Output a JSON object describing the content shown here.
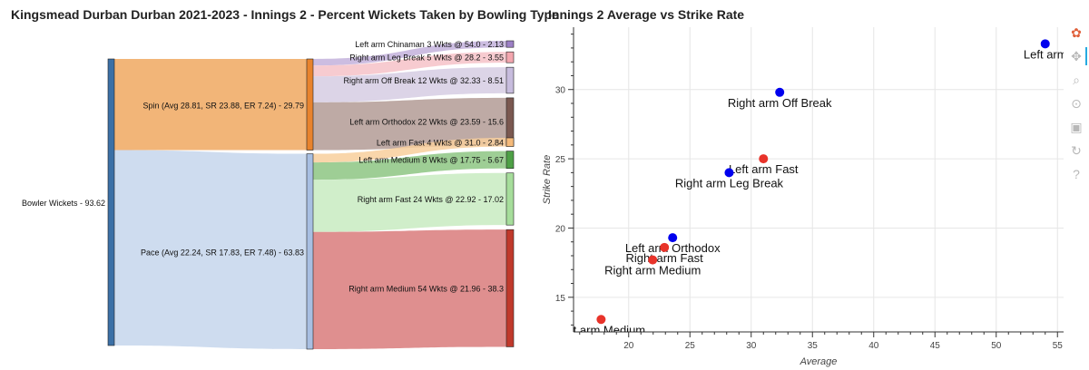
{
  "sankey": {
    "title": "Kingsmead Durban Durban 2021-2023 - Innings 2 - Percent Wickets Taken by Bowling Type",
    "root": {
      "label": "Bowler Wickets - 93.62",
      "value": 93.62,
      "color": "#3b70a6"
    },
    "groups": [
      {
        "label": "Spin (Avg 28.81, SR 23.88, ER 7.24) - 29.79",
        "value": 29.79,
        "color": "#f0a860",
        "node_color": "#e8832d"
      },
      {
        "label": "Pace (Avg 22.24, SR 17.83, ER 7.48) - 63.83",
        "value": 63.83,
        "color": "#c5d6ec",
        "node_color": "#a8bfe2"
      }
    ],
    "leaves": [
      {
        "group": 0,
        "label": "Left arm Chinaman 3 Wkts @ 54.0 - 2.13",
        "value": 2.13,
        "color": "#c3b2dc",
        "node_color": "#9c7fc5"
      },
      {
        "group": 0,
        "label": "Right arm Leg Break 5 Wkts @ 28.2 - 3.55",
        "value": 3.55,
        "color": "#f6c2c8",
        "node_color": "#f3a6ae"
      },
      {
        "group": 0,
        "label": "Right arm Off Break 12 Wkts @ 32.33 - 8.51",
        "value": 8.51,
        "color": "#d6cde3",
        "node_color": "#c7bcdd"
      },
      {
        "group": 0,
        "label": "Left arm Orthodox 22 Wkts @ 23.59 - 15.6",
        "value": 15.6,
        "color": "#b39b95",
        "node_color": "#7a5850"
      },
      {
        "group": 1,
        "label": "Left arm Fast 4 Wkts @ 31.0 - 2.84",
        "value": 2.84,
        "color": "#f8cf9c",
        "node_color": "#f5ba7a"
      },
      {
        "group": 1,
        "label": "Left arm Medium 8 Wkts @ 17.75 - 5.67",
        "value": 5.67,
        "color": "#8dc683",
        "node_color": "#4ea046"
      },
      {
        "group": 1,
        "label": "Right arm Fast 24 Wkts @ 22.92 - 17.02",
        "value": 17.02,
        "color": "#c8ebc1",
        "node_color": "#a6dd9b"
      },
      {
        "group": 1,
        "label": "Right arm Medium 54 Wkts @ 21.96 - 38.3",
        "value": 38.3,
        "color": "#d97b7b",
        "node_color": "#c0392b"
      }
    ]
  },
  "scatter": {
    "title": "Innings 2 Average vs Strike Rate",
    "toolbar": [
      {
        "name": "bokeh-logo-icon",
        "glyph": "✿"
      },
      {
        "name": "pan-icon",
        "glyph": "✥"
      },
      {
        "name": "box-zoom-icon",
        "glyph": "⌕"
      },
      {
        "name": "wheel-zoom-icon",
        "glyph": "⊙"
      },
      {
        "name": "save-icon",
        "glyph": "▣"
      },
      {
        "name": "reset-icon",
        "glyph": "↻"
      },
      {
        "name": "help-icon",
        "glyph": "?"
      }
    ]
  },
  "chart_data": [
    {
      "type": "sankey",
      "title": "Kingsmead Durban Durban 2021-2023 - Innings 2 - Percent Wickets Taken by Bowling Type",
      "nodes": [
        "Bowler Wickets",
        "Spin",
        "Pace",
        "Left arm Chinaman",
        "Right arm Leg Break",
        "Right arm Off Break",
        "Left arm Orthodox",
        "Left arm Fast",
        "Left arm Medium",
        "Right arm Fast",
        "Right arm Medium"
      ],
      "links": [
        {
          "source": "Bowler Wickets",
          "target": "Spin",
          "value": 29.79
        },
        {
          "source": "Bowler Wickets",
          "target": "Pace",
          "value": 63.83
        },
        {
          "source": "Spin",
          "target": "Left arm Chinaman",
          "value": 2.13
        },
        {
          "source": "Spin",
          "target": "Right arm Leg Break",
          "value": 3.55
        },
        {
          "source": "Spin",
          "target": "Right arm Off Break",
          "value": 8.51
        },
        {
          "source": "Spin",
          "target": "Left arm Orthodox",
          "value": 15.6
        },
        {
          "source": "Pace",
          "target": "Left arm Fast",
          "value": 2.84
        },
        {
          "source": "Pace",
          "target": "Left arm Medium",
          "value": 5.67
        },
        {
          "source": "Pace",
          "target": "Right arm Fast",
          "value": 17.02
        },
        {
          "source": "Pace",
          "target": "Right arm Medium",
          "value": 38.3
        }
      ]
    },
    {
      "type": "scatter",
      "title": "Innings 2 Average vs Strike Rate",
      "xlabel": "Average",
      "ylabel": "Strike Rate",
      "xlim": [
        15.5,
        55.5
      ],
      "ylim": [
        12.5,
        34.5
      ],
      "xticks": [
        20,
        25,
        30,
        35,
        40,
        45,
        50,
        55
      ],
      "yticks": [
        15,
        20,
        25,
        30
      ],
      "grid": true,
      "points": [
        {
          "label": "Left arm Chinaman",
          "display_label": "Left arm",
          "x": 54.0,
          "y": 33.3,
          "color": "#0000ee"
        },
        {
          "label": "Right arm Off Break",
          "display_label": "Right arm Off Break",
          "x": 32.33,
          "y": 29.8,
          "color": "#0000ee"
        },
        {
          "label": "Left arm Fast",
          "display_label": "Left arm Fast",
          "x": 31.0,
          "y": 25.0,
          "color": "#e8332a"
        },
        {
          "label": "Right arm Leg Break",
          "display_label": "Right arm Leg Break",
          "x": 28.2,
          "y": 24.0,
          "color": "#0000ee"
        },
        {
          "label": "Left arm Orthodox",
          "display_label": "Left arm Orthodox",
          "x": 23.59,
          "y": 19.3,
          "color": "#0000ee"
        },
        {
          "label": "Right arm Fast",
          "display_label": "Right arm Fast",
          "x": 22.92,
          "y": 18.6,
          "color": "#e8332a"
        },
        {
          "label": "Right arm Medium",
          "display_label": "Right arm Medium",
          "x": 21.96,
          "y": 17.7,
          "color": "#e8332a"
        },
        {
          "label": "Left arm Medium",
          "display_label": "Left arm Medium",
          "x": 17.75,
          "y": 13.4,
          "color": "#e8332a"
        }
      ]
    }
  ]
}
